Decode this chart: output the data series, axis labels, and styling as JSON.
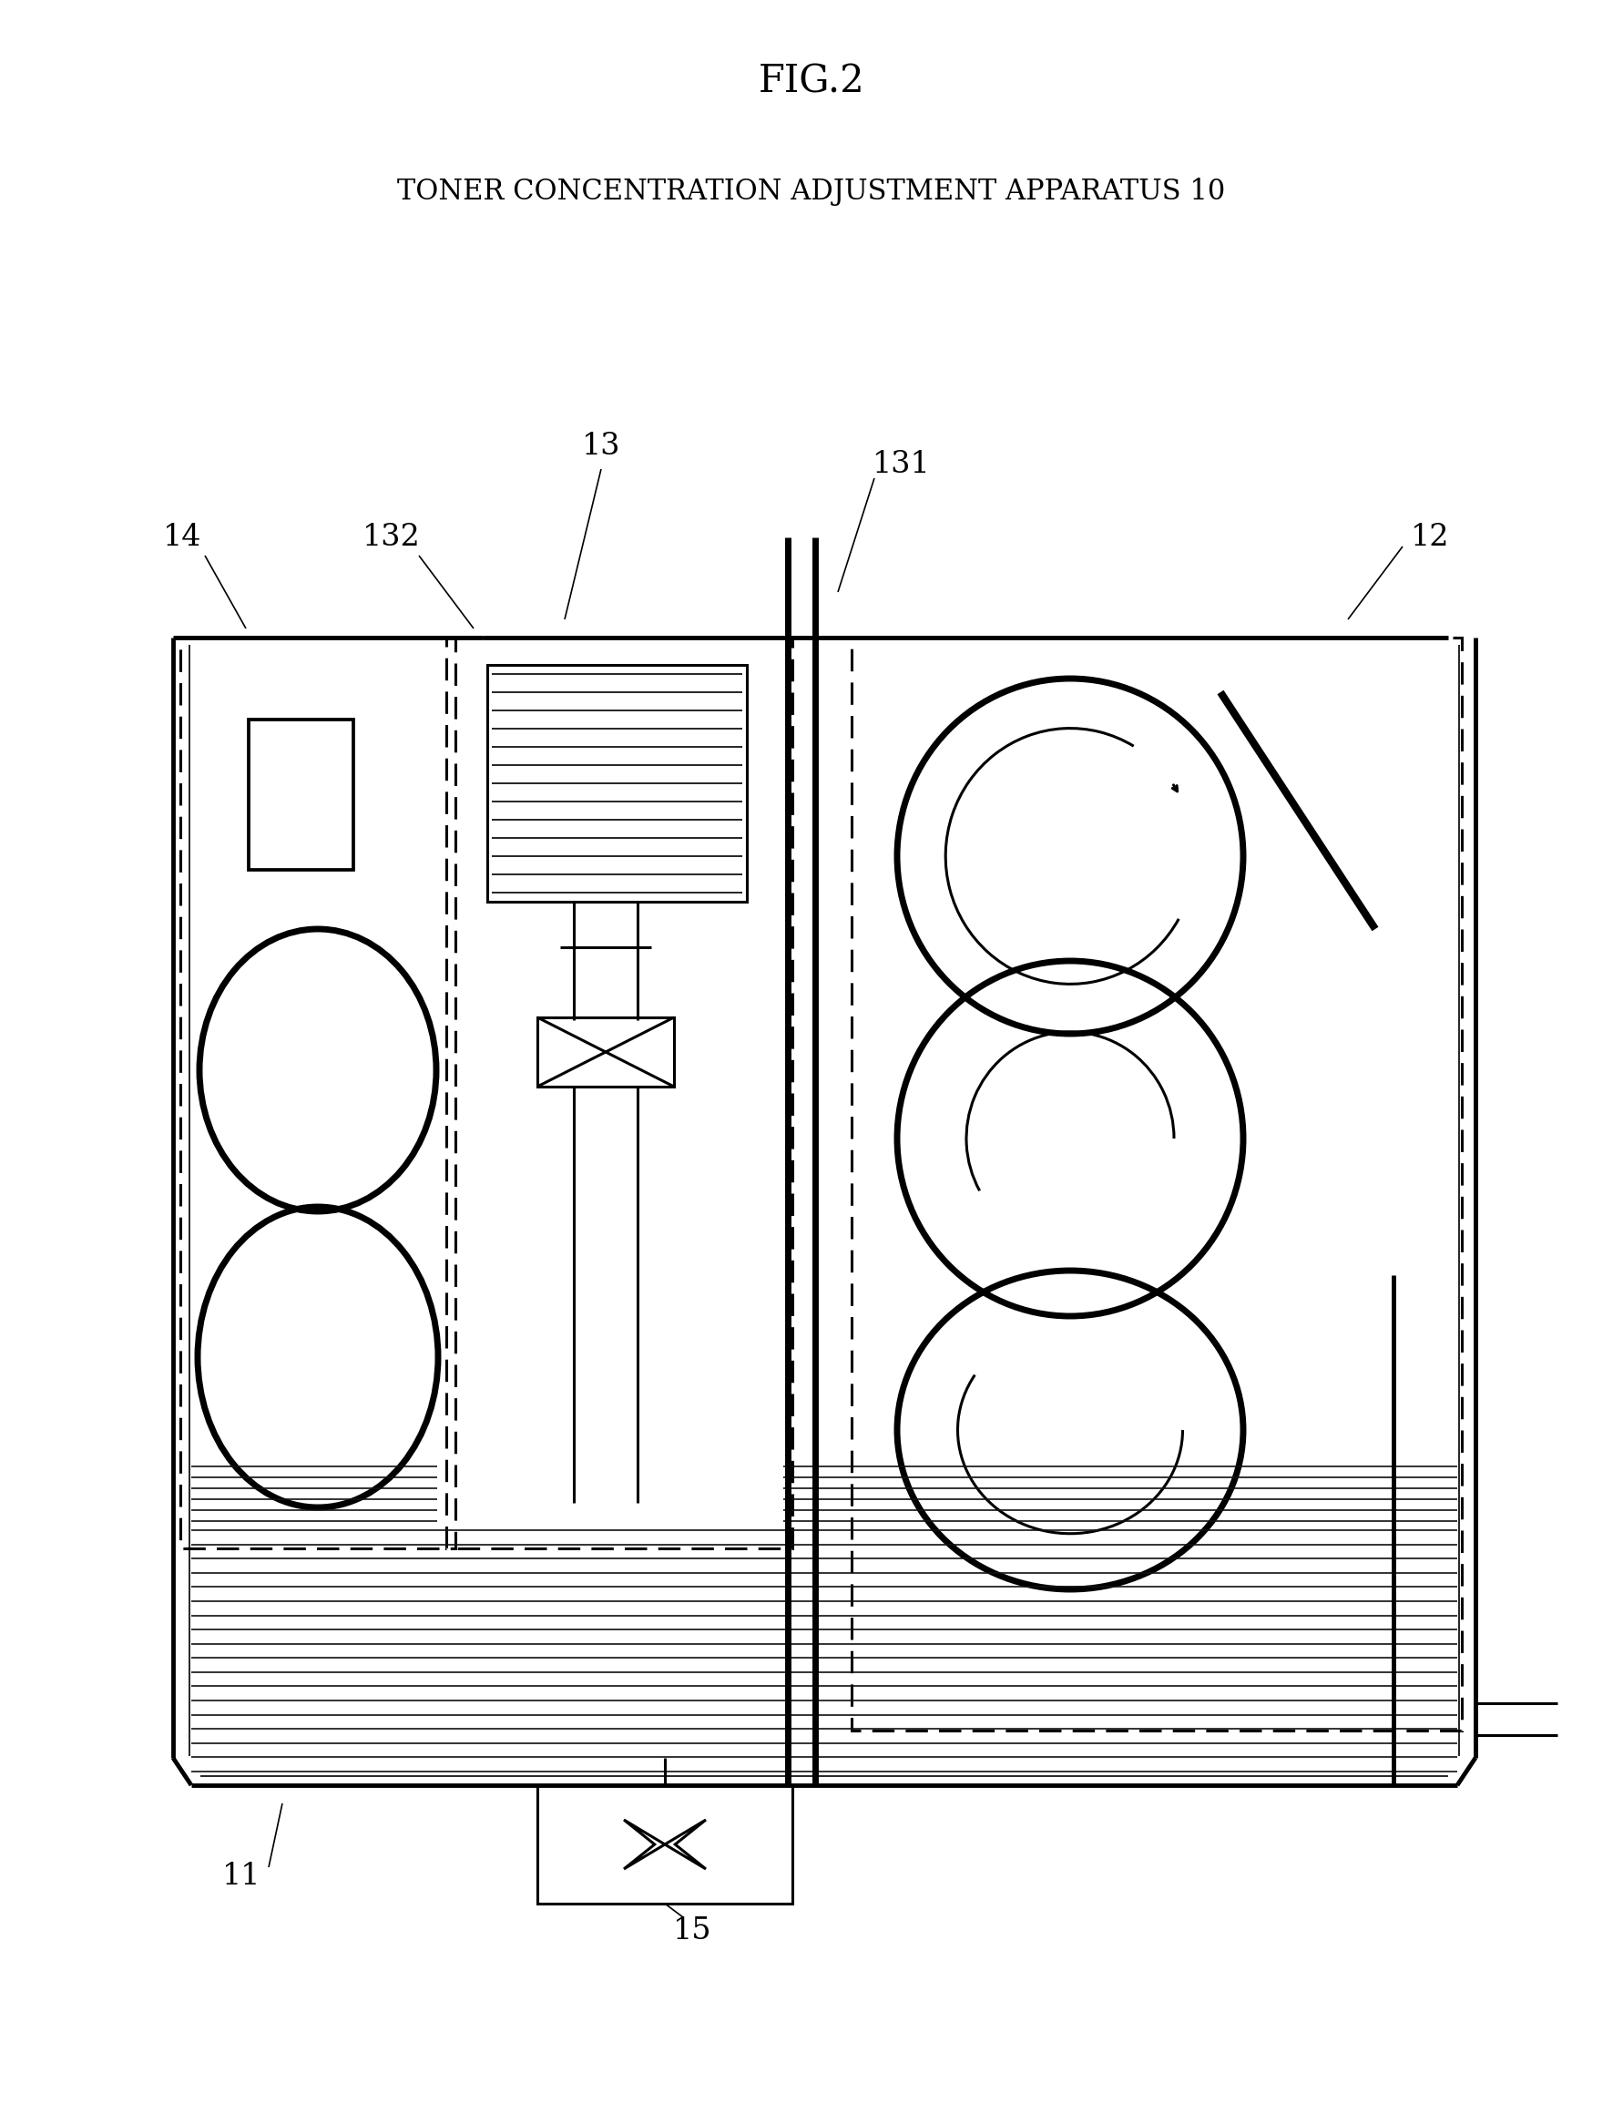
{
  "title": "FIG.2",
  "subtitle": "TONER CONCENTRATION ADJUSTMENT APPARATUS 10",
  "bg_color": "#ffffff",
  "line_color": "#000000",
  "fig_width": 17.82,
  "fig_height": 23.21,
  "lw_thin": 1.2,
  "lw_med": 2.2,
  "lw_thick": 3.5,
  "lw_xthick": 5.0
}
